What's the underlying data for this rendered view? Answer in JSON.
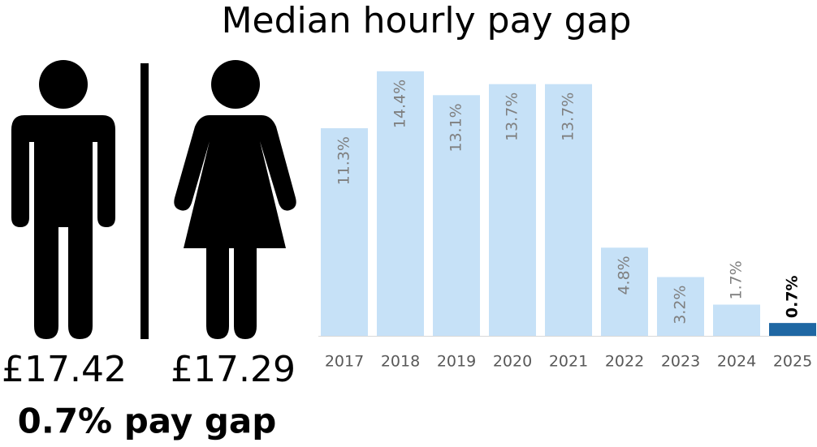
{
  "chart_data": {
    "type": "bar",
    "title": "Median hourly pay gap",
    "annotations": [
      "£17.42",
      "£17.29",
      "0.7% pay gap"
    ],
    "categories": [
      "2017",
      "2018",
      "2019",
      "2020",
      "2021",
      "2022",
      "2023",
      "2024",
      "2025"
    ],
    "values": [
      11.3,
      14.4,
      13.1,
      13.7,
      13.7,
      4.8,
      3.2,
      1.7,
      0.7
    ],
    "value_labels": [
      "11.3%",
      "14.4%",
      "13.1%",
      "13.7%",
      "13.7%",
      "4.8%",
      "3.2%",
      "1.7%",
      "0.7%"
    ],
    "colors": [
      "#c6e1f7",
      "#c6e1f7",
      "#c6e1f7",
      "#c6e1f7",
      "#c6e1f7",
      "#c6e1f7",
      "#c6e1f7",
      "#c6e1f7",
      "#1f67a3"
    ]
  }
}
